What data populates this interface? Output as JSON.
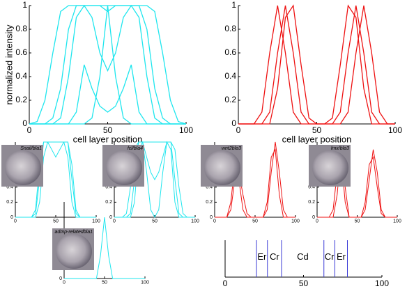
{
  "chart_data": [
    {
      "type": "line",
      "y_label": "normalized intensity",
      "x_label": "cell layer position",
      "xlim": [
        0,
        100
      ],
      "ylim": [
        0,
        1
      ],
      "xticks": [
        0,
        50,
        100
      ],
      "yticks": [
        0,
        0.2,
        0.4,
        0.6,
        0.8,
        1
      ],
      "x": [
        0,
        5,
        10,
        15,
        20,
        25,
        30,
        35,
        40,
        45,
        50,
        55,
        60,
        65,
        70,
        75,
        80,
        85,
        90,
        95,
        100
      ],
      "series": [
        {
          "color": "#1ee6ee",
          "values": [
            0,
            0.02,
            0.2,
            0.6,
            0.95,
            1,
            1,
            1,
            1,
            1,
            1,
            1,
            1,
            1,
            1,
            1,
            0.95,
            0.6,
            0.2,
            0.02,
            0
          ]
        },
        {
          "color": "#1ee6ee",
          "values": [
            0,
            0,
            0,
            0.05,
            0.3,
            0.8,
            1,
            1,
            1,
            1,
            0.95,
            1,
            1,
            1,
            1,
            0.8,
            0.3,
            0.05,
            0,
            0,
            0
          ]
        },
        {
          "color": "#1ee6ee",
          "values": [
            0,
            0,
            0,
            0,
            0.05,
            0.4,
            0.9,
            1,
            0.9,
            0.6,
            0.45,
            0.6,
            0.9,
            1,
            0.9,
            0.4,
            0.05,
            0,
            0,
            0,
            0
          ]
        },
        {
          "color": "#1ee6ee",
          "values": [
            0,
            0,
            0,
            0,
            0,
            0,
            0.1,
            0.5,
            0.3,
            0.15,
            0.1,
            0.15,
            0.3,
            0.5,
            0.1,
            0,
            0,
            0,
            0,
            0,
            0
          ]
        },
        {
          "color": "#1ee6ee",
          "values": [
            0,
            0,
            0,
            0,
            0,
            0,
            0,
            0,
            0.05,
            0.4,
            1,
            0.4,
            0.05,
            0,
            0,
            0,
            0,
            0,
            0,
            0,
            0
          ]
        }
      ]
    },
    {
      "type": "line",
      "x_label": "cell layer position",
      "xlim": [
        0,
        100
      ],
      "ylim": [
        0,
        1
      ],
      "xticks": [
        0,
        50,
        100
      ],
      "yticks": [
        0,
        0.2,
        0.4,
        0.6,
        0.8,
        1
      ],
      "x": [
        0,
        5,
        10,
        15,
        20,
        25,
        30,
        35,
        40,
        45,
        50,
        55,
        60,
        65,
        70,
        75,
        80,
        85,
        90,
        95,
        100
      ],
      "series": [
        {
          "color": "#ee1111",
          "values": [
            0,
            0,
            0,
            0,
            0.1,
            0.6,
            1,
            0.6,
            0.1,
            0,
            0,
            0,
            0,
            0.1,
            0.6,
            1,
            0.6,
            0.1,
            0,
            0,
            0
          ]
        },
        {
          "color": "#ee1111",
          "values": [
            0,
            0,
            0,
            0.1,
            0.6,
            1,
            0.6,
            0.1,
            0,
            0,
            0,
            0,
            0,
            0,
            0.1,
            0.6,
            1,
            0.6,
            0.1,
            0,
            0
          ]
        },
        {
          "color": "#ee1111",
          "values": [
            0,
            0,
            0,
            0,
            0,
            0.3,
            0.9,
            1,
            0.5,
            0.05,
            0,
            0,
            0.05,
            0.5,
            1,
            0.9,
            0.3,
            0,
            0,
            0,
            0
          ]
        }
      ]
    },
    {
      "type": "line",
      "image_caption": "Snail/bla1",
      "xlim": [
        0,
        100
      ],
      "ylim": [
        0,
        1
      ],
      "xticks": [
        0,
        50,
        100
      ],
      "yticks": [
        0,
        0.2,
        0.4
      ],
      "x": [
        0,
        5,
        10,
        15,
        20,
        25,
        30,
        35,
        40,
        45,
        50,
        55,
        60,
        65,
        70,
        75,
        80,
        85,
        90,
        95,
        100
      ],
      "series": [
        {
          "color": "#1ee6ee",
          "values": [
            0,
            0,
            0,
            0,
            0,
            0.05,
            0.5,
            1,
            1,
            1,
            1,
            1,
            1,
            1,
            0.5,
            0.05,
            0,
            0,
            0,
            0,
            0
          ]
        },
        {
          "color": "#1ee6ee",
          "values": [
            0,
            0,
            0,
            0,
            0,
            0,
            0.2,
            0.8,
            1,
            1,
            1,
            1,
            1,
            0.8,
            0.2,
            0,
            0,
            0,
            0,
            0,
            0
          ]
        },
        {
          "color": "#1ee6ee",
          "values": [
            0,
            0,
            0,
            0,
            0,
            0.1,
            0.7,
            1,
            1,
            0.9,
            0.8,
            0.9,
            1,
            1,
            0.7,
            0.1,
            0,
            0,
            0,
            0,
            0
          ]
        }
      ]
    },
    {
      "type": "line",
      "image_caption": "fcl/bla4",
      "xlim": [
        0,
        100
      ],
      "ylim": [
        0,
        1
      ],
      "xticks": [
        0,
        50,
        100
      ],
      "yticks": [
        0,
        0.2,
        0.4
      ],
      "x": [
        0,
        5,
        10,
        15,
        20,
        25,
        30,
        35,
        40,
        45,
        50,
        55,
        60,
        65,
        70,
        75,
        80,
        85,
        90,
        95,
        100
      ],
      "series": [
        {
          "color": "#1ee6ee",
          "values": [
            0,
            0,
            0,
            0.05,
            0.4,
            0.9,
            1,
            1,
            1,
            1,
            1,
            1,
            1,
            1,
            1,
            0.9,
            0.4,
            0.05,
            0,
            0,
            0
          ]
        },
        {
          "color": "#1ee6ee",
          "values": [
            0,
            0,
            0,
            0,
            0.05,
            0.5,
            1,
            1,
            0.8,
            0.6,
            0.5,
            0.6,
            0.8,
            1,
            1,
            0.5,
            0.05,
            0,
            0,
            0,
            0
          ]
        },
        {
          "color": "#1ee6ee",
          "values": [
            0,
            0,
            0,
            0,
            0,
            0.2,
            0.9,
            1,
            0.6,
            0.1,
            0,
            0.1,
            0.6,
            1,
            0.9,
            0.2,
            0,
            0,
            0,
            0,
            0
          ]
        }
      ]
    },
    {
      "type": "line",
      "image_caption": "wnt2bla3",
      "xlim": [
        0,
        100
      ],
      "ylim": [
        0,
        1
      ],
      "xticks": [
        0,
        50,
        100
      ],
      "yticks": [
        0,
        0.2,
        0.4
      ],
      "x": [
        0,
        5,
        10,
        15,
        20,
        25,
        30,
        35,
        40,
        45,
        50,
        55,
        60,
        65,
        70,
        75,
        80,
        85,
        90,
        95,
        100
      ],
      "series": [
        {
          "color": "#ee1111",
          "values": [
            0,
            0,
            0,
            0,
            0.1,
            0.5,
            0.6,
            0.3,
            0.05,
            0,
            0,
            0,
            0,
            0.1,
            0.6,
            1,
            0.6,
            0.1,
            0,
            0,
            0
          ]
        },
        {
          "color": "#ee1111",
          "values": [
            0,
            0,
            0,
            0,
            0.2,
            0.7,
            0.5,
            0.1,
            0,
            0,
            0,
            0,
            0,
            0.2,
            0.8,
            0.9,
            0.3,
            0,
            0,
            0,
            0
          ]
        }
      ]
    },
    {
      "type": "line",
      "image_caption": "lmx/bla3",
      "xlim": [
        0,
        100
      ],
      "ylim": [
        0,
        1
      ],
      "xticks": [
        0,
        50,
        100
      ],
      "yticks": [
        0,
        0.2,
        0.4
      ],
      "x": [
        0,
        5,
        10,
        15,
        20,
        25,
        30,
        35,
        40,
        45,
        50,
        55,
        60,
        65,
        70,
        75,
        80,
        85,
        90,
        95,
        100
      ],
      "series": [
        {
          "color": "#ee1111",
          "values": [
            0,
            0,
            0,
            0,
            0,
            0.3,
            0.9,
            0.4,
            0,
            0,
            0,
            0,
            0.2,
            0.7,
            0.8,
            0.4,
            0.05,
            0,
            0,
            0,
            0
          ]
        },
        {
          "color": "#ee1111",
          "values": [
            0,
            0,
            0,
            0,
            0.1,
            0.6,
            0.8,
            0.2,
            0,
            0,
            0,
            0,
            0.1,
            0.5,
            0.9,
            0.6,
            0.1,
            0,
            0,
            0,
            0
          ]
        }
      ]
    },
    {
      "type": "line",
      "image_caption": "admp-relatedbla1",
      "xlim": [
        0,
        100
      ],
      "ylim": [
        0,
        1
      ],
      "xticks": [
        0,
        50,
        100
      ],
      "yticks": [
        0,
        0.2,
        0.4
      ],
      "x": [
        0,
        5,
        10,
        15,
        20,
        25,
        30,
        35,
        40,
        45,
        50,
        55,
        60,
        65,
        70,
        75,
        80,
        85,
        90,
        95,
        100
      ],
      "series": [
        {
          "color": "#1ee6ee",
          "values": [
            0,
            0,
            0,
            0,
            0,
            0,
            0,
            0,
            0,
            0.3,
            0.8,
            0.3,
            0,
            0,
            0,
            0,
            0,
            0,
            0,
            0,
            0
          ]
        }
      ]
    },
    {
      "type": "segments",
      "xlim": [
        0,
        100
      ],
      "xticks": [
        0,
        50,
        100
      ],
      "boundaries": [
        20,
        27,
        36,
        63,
        70,
        78
      ],
      "categories": [
        "Er",
        "Cr",
        "Cd",
        "Cr",
        "Er"
      ],
      "color": "#3a3ad6"
    }
  ]
}
